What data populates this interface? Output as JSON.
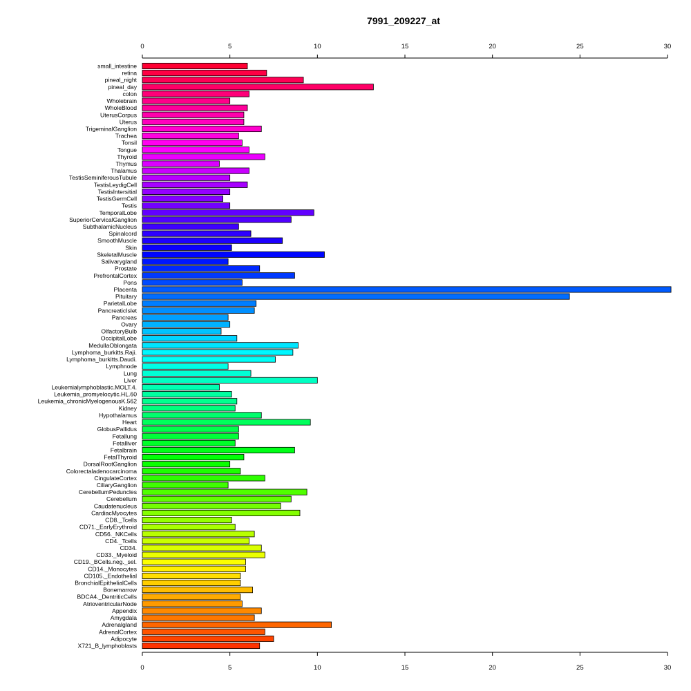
{
  "chart_data": {
    "type": "bar",
    "orientation": "horizontal",
    "title": "7991_209227_at",
    "xlabel": "",
    "ylabel": "",
    "xlim": [
      0,
      30
    ],
    "x_ticks": [
      "0",
      "5",
      "10",
      "15",
      "20",
      "25",
      "30"
    ],
    "x_tick_values": [
      0,
      5,
      10,
      15,
      20,
      25,
      30
    ],
    "axes": "top-and-bottom",
    "grid": false,
    "legend": "none",
    "categories": [
      "small_intestine",
      "retina",
      "pineal_night",
      "pineal_day",
      "colon",
      "Wholebrain",
      "WholeBlood",
      "UterusCorpus",
      "Uterus",
      "TrigeminalGanglion",
      "Trachea",
      "Tonsil",
      "Tongue",
      "Thyroid",
      "Thymus",
      "Thalamus",
      "TestisSeminiferousTubule",
      "TestisLeydigCell",
      "TestisIntersitial",
      "TestisGermCell",
      "Testis",
      "TemporalLobe",
      "SuperiorCervicalGanglion",
      "SubthalamicNucleus",
      "Spinalcord",
      "SmoothMuscle",
      "Skin",
      "SkeletalMuscle",
      "Salivarygland",
      "Prostate",
      "PrefrontalCortex",
      "Pons",
      "Placenta",
      "Pituitary",
      "ParietalLobe",
      "PancreaticIslet",
      "Pancreas",
      "Ovary",
      "OlfactoryBulb",
      "OccipitalLobe",
      "MedullaOblongata",
      "Lymphoma_burkitts.Raji.",
      "Lymphoma_burkitts.Daudi.",
      "Lymphnode",
      "Lung",
      "Liver",
      "Leukemialymphoblastic.MOLT.4.",
      "Leukemia_promyelocytic.HL.60",
      "Leukemia_chronicMyelogenousK.562",
      "Kidney",
      "Hypothalamus",
      "Heart",
      "GlobusPallidus",
      "Fetallung",
      "Fetalliver",
      "Fetalbrain",
      "FetalThyroid",
      "DorsalRootGanglion",
      "Colorectaladenocarcinoma",
      "CingulateCortex",
      "CiliaryGanglion",
      "CerebellumPeduncles",
      "Cerebellum",
      "Caudatenucleus",
      "CardiacMyocytes",
      "CD8._Tcells",
      "CD71._EarlyErythroid",
      "CD56._NKCells",
      "CD4._Tcells",
      "CD34.",
      "CD33._Myeloid",
      "CD19._BCells.neg._sel.",
      "CD14._Monocytes",
      "CD105._Endothelial",
      "BronchialEpithelialCells",
      "Bonemarrow",
      "BDCA4._DentriticCells",
      "AtrioventricularNode",
      "Appendix",
      "Amygdala",
      "Adrenalgland",
      "AdrenalCortex",
      "Adipocyte",
      "X721_B_lymphoblasts"
    ],
    "values": [
      6.0,
      7.1,
      9.2,
      13.2,
      6.1,
      5.0,
      6.0,
      5.8,
      5.8,
      6.8,
      5.5,
      5.7,
      6.1,
      7.0,
      4.4,
      6.1,
      5.0,
      6.0,
      5.0,
      4.6,
      5.0,
      9.8,
      8.5,
      5.5,
      6.2,
      8.0,
      5.1,
      10.4,
      4.9,
      6.7,
      8.7,
      5.7,
      30.2,
      24.4,
      6.5,
      6.4,
      4.9,
      5.0,
      4.5,
      5.4,
      8.9,
      8.6,
      7.6,
      4.9,
      6.2,
      10.0,
      4.4,
      5.1,
      5.4,
      5.3,
      6.8,
      9.6,
      5.5,
      5.5,
      5.3,
      8.7,
      5.8,
      5.0,
      5.6,
      7.0,
      4.9,
      9.4,
      8.5,
      7.9,
      9.0,
      5.1,
      5.3,
      6.4,
      6.1,
      6.8,
      7.0,
      5.9,
      5.9,
      5.6,
      5.6,
      6.3,
      5.6,
      5.7,
      6.8,
      6.4,
      10.8,
      7.0,
      7.5,
      6.7
    ],
    "colors": "rainbow from red (#ff0033) at top through magenta, blue, cyan, green, yellow, orange to red (#ff2600) at bottom"
  }
}
